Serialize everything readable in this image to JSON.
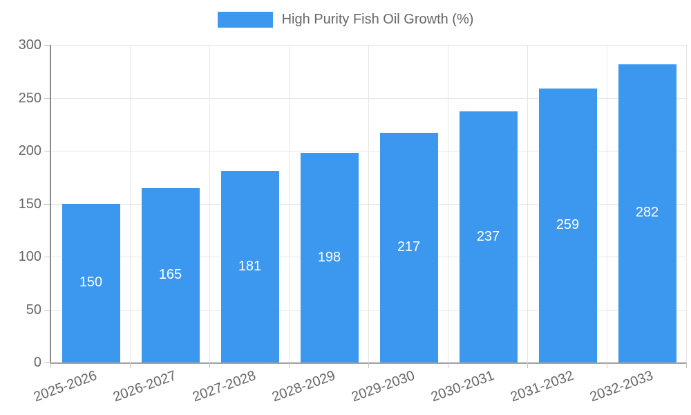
{
  "legend": {
    "label": "High Purity Fish Oil Growth (%)"
  },
  "chart_data": {
    "type": "bar",
    "title": "High Purity Fish Oil Growth (%)",
    "categories": [
      "2025-2026",
      "2026-2027",
      "2027-2028",
      "2028-2029",
      "2029-2030",
      "2030-2031",
      "2031-2032",
      "2032-2033"
    ],
    "series": [
      {
        "name": "High Purity Fish Oil Growth (%)",
        "values": [
          150,
          165,
          181,
          198,
          217,
          237,
          259,
          282
        ]
      }
    ],
    "xlabel": "",
    "ylabel": "",
    "ylim": [
      0,
      300
    ],
    "ytick_step": 50,
    "yticks": [
      0,
      50,
      100,
      150,
      200,
      250,
      300
    ],
    "grid": true,
    "legend_position": "top",
    "bar_color": "#3b98ee",
    "value_label_color": "#ffffff",
    "axis_text_color": "#666666",
    "gridline_color": "#e6e6e6"
  }
}
